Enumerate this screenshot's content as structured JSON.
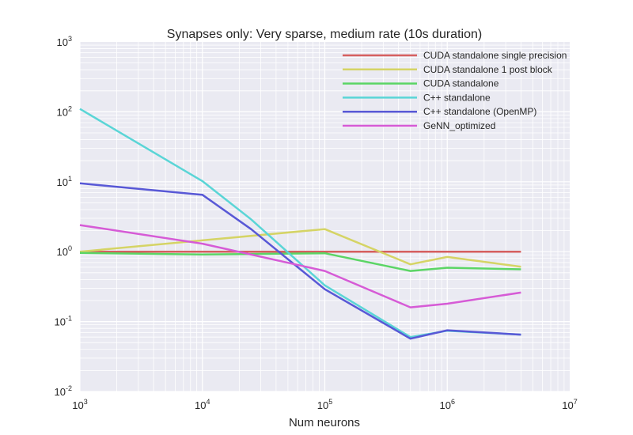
{
  "chart_data": {
    "type": "line",
    "title": "Synapses only: Very sparse, medium rate (10s duration)",
    "xlabel": "Num neurons",
    "ylabel": "",
    "xscale": "log",
    "yscale": "log",
    "xlim": [
      1000,
      10000000
    ],
    "ylim": [
      0.01,
      1000
    ],
    "grid": true,
    "legend_position": "top-right",
    "x_ticks": [
      {
        "base": "10",
        "exp": "3",
        "value": 1000
      },
      {
        "base": "10",
        "exp": "4",
        "value": 10000
      },
      {
        "base": "10",
        "exp": "5",
        "value": 100000
      },
      {
        "base": "10",
        "exp": "6",
        "value": 1000000
      },
      {
        "base": "10",
        "exp": "7",
        "value": 10000000
      }
    ],
    "y_ticks": [
      {
        "base": "10",
        "exp": "-2",
        "value": 0.01
      },
      {
        "base": "10",
        "exp": "-1",
        "value": 0.1
      },
      {
        "base": "10",
        "exp": "0",
        "value": 1
      },
      {
        "base": "10",
        "exp": "1",
        "value": 10
      },
      {
        "base": "10",
        "exp": "2",
        "value": 100
      },
      {
        "base": "10",
        "exp": "3",
        "value": 1000
      }
    ],
    "series": [
      {
        "name": "CUDA standalone single precision",
        "color": "#d65f5f",
        "x": [
          1000,
          10000,
          100000,
          500000,
          1000000,
          4000000
        ],
        "y": [
          1.0,
          1.0,
          1.0,
          1.0,
          1.0,
          1.0
        ]
      },
      {
        "name": "CUDA standalone 1 post block",
        "color": "#d5d465",
        "x": [
          1000,
          10000,
          100000,
          500000,
          1000000,
          4000000
        ],
        "y": [
          1.0,
          1.45,
          2.1,
          0.66,
          0.84,
          0.61
        ]
      },
      {
        "name": "CUDA standalone",
        "color": "#5bd565",
        "x": [
          1000,
          10000,
          100000,
          500000,
          1000000,
          4000000
        ],
        "y": [
          0.96,
          0.91,
          0.95,
          0.53,
          0.59,
          0.56
        ]
      },
      {
        "name": "C++ standalone",
        "color": "#5ad5d6",
        "x": [
          1000,
          10000,
          25000,
          100000,
          500000,
          1000000,
          4000000
        ],
        "y": [
          110,
          10.2,
          2.9,
          0.33,
          0.06,
          0.074,
          0.065
        ]
      },
      {
        "name": "C++ standalone (OpenMP)",
        "color": "#5858d6",
        "x": [
          1000,
          10000,
          25000,
          100000,
          500000,
          1000000,
          4000000
        ],
        "y": [
          9.5,
          6.5,
          2.1,
          0.29,
          0.057,
          0.075,
          0.065
        ]
      },
      {
        "name": "GeNN_optimized",
        "color": "#d65bd6",
        "x": [
          1000,
          10000,
          100000,
          500000,
          1000000,
          4000000
        ],
        "y": [
          2.4,
          1.3,
          0.53,
          0.16,
          0.18,
          0.26
        ]
      }
    ]
  }
}
